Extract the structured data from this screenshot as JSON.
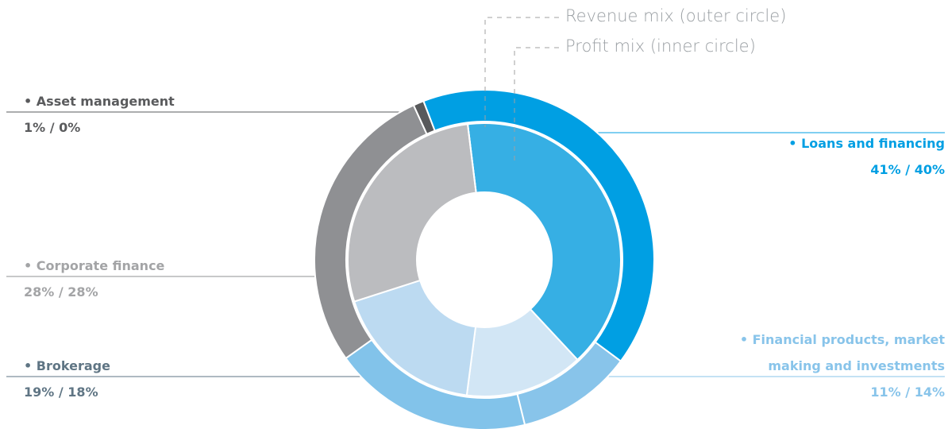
{
  "chart_data": {
    "type": "donut",
    "categories": [
      "Loans and financing",
      "Financial products, market making and investments",
      "Brokerage",
      "Corporate finance",
      "Asset management"
    ],
    "label_colors": [
      "#009fe3",
      "#88c4ea",
      "#5f7584",
      "#a3a4a6",
      "#5a5b5d"
    ],
    "label_separator": "/",
    "series": [
      {
        "name": "Revenue mix (outer circle)",
        "values": [
          41,
          11,
          19,
          28,
          1
        ],
        "value_labels": [
          "41%",
          "11%",
          "19%",
          "28%",
          "1%"
        ],
        "colors": [
          "#009fe3",
          "#88c4ea",
          "#82c3ea",
          "#8f9093",
          "#58595b"
        ]
      },
      {
        "name": "Profit mix (inner circle)",
        "values": [
          40,
          14,
          18,
          28,
          0
        ],
        "value_labels": [
          "40%",
          "14%",
          "18%",
          "28%",
          "0%"
        ],
        "colors": [
          "#36afe4",
          "#d2e6f5",
          "#bcdaf1",
          "#bbbcbf",
          "#9c9da0"
        ]
      }
    ]
  }
}
